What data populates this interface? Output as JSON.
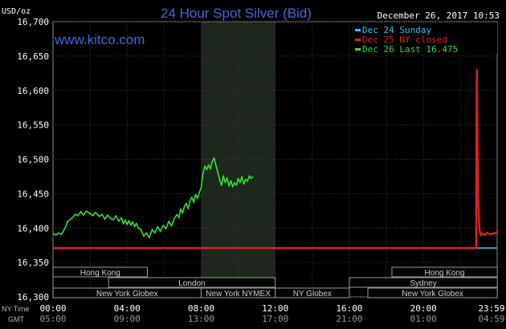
{
  "chart_data": {
    "type": "line",
    "title": "24 Hour Spot Silver (Bid)",
    "unit_label": "USD/oz",
    "watermark": "www.kitco.com",
    "timestamp": "December 26, 2017 10:53",
    "ylim": [
      16.3,
      16.7
    ],
    "y_ticks": [
      "16,700",
      "16,650",
      "16,600",
      "16,550",
      "16,500",
      "16,450",
      "16,400",
      "16,350",
      "16,300"
    ],
    "x_axis": {
      "ny_label": "NY Time",
      "gmt_label": "GMT",
      "ny_ticks": [
        "00:00",
        "04:00",
        "08:00",
        "12:00",
        "16:00",
        "20:00",
        "23:59"
      ],
      "gmt_ticks": [
        "05:00",
        "09:00",
        "13:00",
        "17:00",
        "21:00",
        "01:00",
        "04:59"
      ]
    },
    "legend": [
      {
        "label": "Dec 24 Sunday",
        "color": "#29c4f0"
      },
      {
        "label": "Dec 25 NY closed",
        "color": "#e02020"
      },
      {
        "label": "Dec 26 Last 16.475",
        "color": "#33e033"
      }
    ],
    "sessions": [
      {
        "label": "Hong Kong",
        "row": 0,
        "start_h": 0.0,
        "end_h": 5.1
      },
      {
        "label": "Hong Kong",
        "row": 0,
        "start_h": 18.3,
        "end_h": 23.99
      },
      {
        "label": "London",
        "row": 1,
        "start_h": 3.0,
        "end_h": 12.0
      },
      {
        "label": "Sydney",
        "row": 1,
        "start_h": 16.0,
        "end_h": 23.99
      },
      {
        "label": "New York Globex",
        "row": 2,
        "start_h": 0.0,
        "end_h": 8.0
      },
      {
        "label": "New York NYMEX",
        "row": 2,
        "start_h": 8.0,
        "end_h": 12.0
      },
      {
        "label": "NY Globex",
        "row": 2,
        "start_h": 12.0,
        "end_h": 16.0
      },
      {
        "label": "New York Globex",
        "row": 2,
        "start_h": 17.0,
        "end_h": 23.99
      }
    ],
    "highlight_hours": [
      8.0,
      12.0
    ],
    "series": [
      {
        "name": "Dec 24 Sunday",
        "color": "#29c4f0",
        "x": [
          22.85,
          23.99
        ],
        "y": [
          16.371,
          16.371
        ]
      },
      {
        "name": "Dec 25 NY closed",
        "color": "#e02020",
        "x": [
          0.0,
          22.85,
          22.88,
          22.9,
          22.92,
          22.96,
          23.0,
          23.04,
          23.1,
          23.2,
          23.3,
          23.45,
          23.6,
          23.75,
          23.9,
          23.99
        ],
        "y": [
          16.371,
          16.371,
          16.63,
          16.6,
          16.52,
          16.44,
          16.41,
          16.395,
          16.39,
          16.392,
          16.39,
          16.393,
          16.391,
          16.392,
          16.393,
          16.395
        ]
      },
      {
        "name": "Dec 26 Last 16.475",
        "color": "#33e033",
        "x": [
          0.0,
          0.15,
          0.3,
          0.45,
          0.55,
          0.7,
          0.8,
          0.9,
          1.05,
          1.2,
          1.35,
          1.5,
          1.65,
          1.8,
          2.0,
          2.15,
          2.3,
          2.5,
          2.65,
          2.8,
          2.95,
          3.1,
          3.25,
          3.4,
          3.55,
          3.7,
          3.8,
          3.9,
          4.0,
          4.1,
          4.2,
          4.3,
          4.4,
          4.5,
          4.6,
          4.75,
          4.9,
          5.05,
          5.2,
          5.35,
          5.5,
          5.65,
          5.8,
          5.95,
          6.1,
          6.25,
          6.4,
          6.55,
          6.7,
          6.8,
          6.9,
          7.0,
          7.1,
          7.2,
          7.3,
          7.4,
          7.5,
          7.6,
          7.7,
          7.8,
          7.9,
          8.0,
          8.1,
          8.2,
          8.3,
          8.4,
          8.5,
          8.6,
          8.7,
          8.8,
          8.9,
          9.0,
          9.1,
          9.2,
          9.3,
          9.4,
          9.5,
          9.6,
          9.7,
          9.8,
          9.9,
          10.0,
          10.1,
          10.2,
          10.3,
          10.4,
          10.5,
          10.6,
          10.7,
          10.8
        ],
        "y": [
          16.392,
          16.39,
          16.393,
          16.391,
          16.395,
          16.403,
          16.41,
          16.412,
          16.415,
          16.42,
          16.418,
          16.424,
          16.419,
          16.425,
          16.421,
          16.418,
          16.423,
          16.417,
          16.42,
          16.413,
          16.419,
          16.414,
          16.412,
          16.418,
          16.41,
          16.415,
          16.406,
          16.412,
          16.405,
          16.411,
          16.404,
          16.409,
          16.402,
          16.407,
          16.4,
          16.398,
          16.388,
          16.393,
          16.386,
          16.398,
          16.393,
          16.402,
          16.395,
          16.404,
          16.399,
          16.41,
          16.403,
          16.414,
          16.42,
          16.415,
          16.428,
          16.422,
          16.432,
          16.436,
          16.428,
          16.44,
          16.445,
          16.437,
          16.449,
          16.443,
          16.452,
          16.459,
          16.48,
          16.49,
          16.485,
          16.492,
          16.486,
          16.497,
          16.502,
          16.491,
          16.481,
          16.47,
          16.462,
          16.476,
          16.466,
          16.473,
          16.461,
          16.469,
          16.46,
          16.466,
          16.462,
          16.472,
          16.466,
          16.475,
          16.464,
          16.471,
          16.468,
          16.476,
          16.472,
          16.475
        ]
      }
    ]
  }
}
